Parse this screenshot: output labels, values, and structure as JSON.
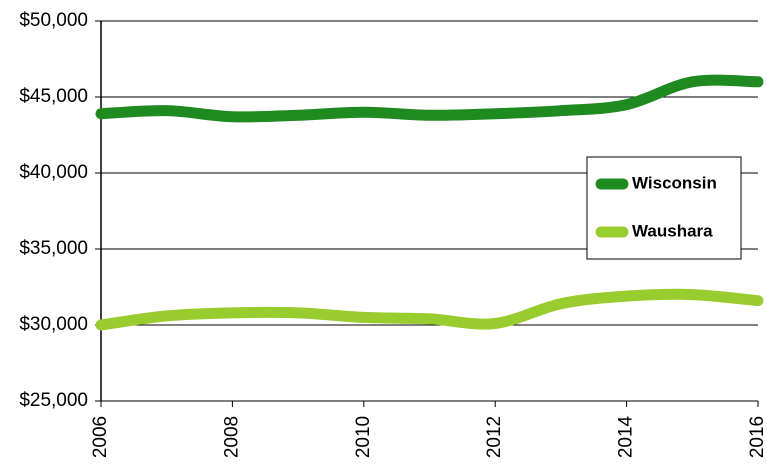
{
  "chart_data": {
    "type": "line",
    "x": [
      2006,
      2007,
      2008,
      2009,
      2010,
      2011,
      2012,
      2013,
      2014,
      2015,
      2016
    ],
    "series": [
      {
        "name": "Wisconsin",
        "color": "#1f8a1f",
        "values": [
          43900,
          44100,
          43700,
          43800,
          44000,
          43800,
          43900,
          44100,
          44500,
          46000,
          46000
        ]
      },
      {
        "name": "Waushara",
        "color": "#99cc2e",
        "values": [
          30000,
          30600,
          30800,
          30800,
          30500,
          30400,
          30100,
          31400,
          31900,
          32000,
          31600
        ]
      }
    ],
    "xlim": [
      2006,
      2016
    ],
    "xticks": [
      2006,
      2008,
      2010,
      2012,
      2014,
      2016
    ],
    "ylim": [
      25000,
      50000
    ],
    "yticks": [
      {
        "value": 25000,
        "label": "$25,000"
      },
      {
        "value": 30000,
        "label": "$30,000"
      },
      {
        "value": 35000,
        "label": "$35,000"
      },
      {
        "value": 40000,
        "label": "$40,000"
      },
      {
        "value": 45000,
        "label": "$45,000"
      },
      {
        "value": 50000,
        "label": "$50,000"
      }
    ],
    "grid": true,
    "legend": "right"
  }
}
